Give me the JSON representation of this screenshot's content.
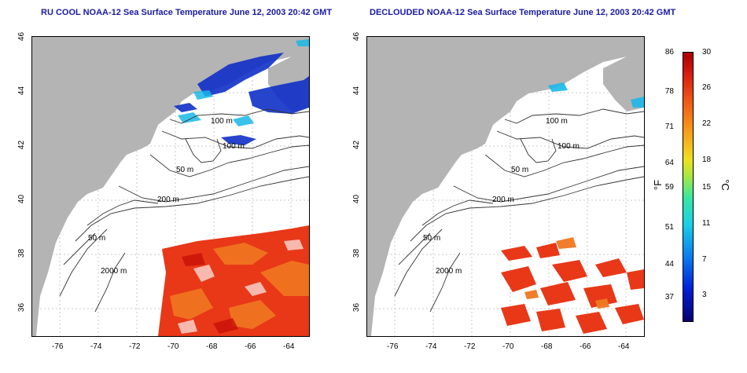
{
  "titles": {
    "left": "RU COOL NOAA-12 Sea Surface Temperature June 12, 2003 20:42 GMT",
    "right": "DECLOUDED NOAA-12 Sea Surface Temperature June 12, 2003 20:42 GMT"
  },
  "axes": {
    "lat_ticks": [
      "46",
      "44",
      "42",
      "40",
      "38",
      "36"
    ],
    "lon_ticks": [
      "-76",
      "-74",
      "-72",
      "-70",
      "-68",
      "-66",
      "-64"
    ]
  },
  "contour_labels": {
    "left": [
      "100 m",
      "100 m",
      "50 m",
      "200 m",
      "50 m",
      "2000 m"
    ],
    "right": [
      "100 m",
      "100 m",
      "50 m",
      "200 m",
      "50 m",
      "2000 m"
    ]
  },
  "colorbar": {
    "fahrenheit_ticks": [
      "86",
      "78",
      "71",
      "64",
      "59",
      "51",
      "44",
      "37"
    ],
    "celsius_ticks": [
      "30",
      "26",
      "22",
      "18",
      "15",
      "11",
      "7",
      "3"
    ],
    "fahrenheit_unit": "°F",
    "celsius_unit": "°C"
  },
  "colors": {
    "land": "#b4b4b4",
    "cold": "#1030c8",
    "warm": "#e83818",
    "hot": "#c81008",
    "orange": "#f07820"
  }
}
